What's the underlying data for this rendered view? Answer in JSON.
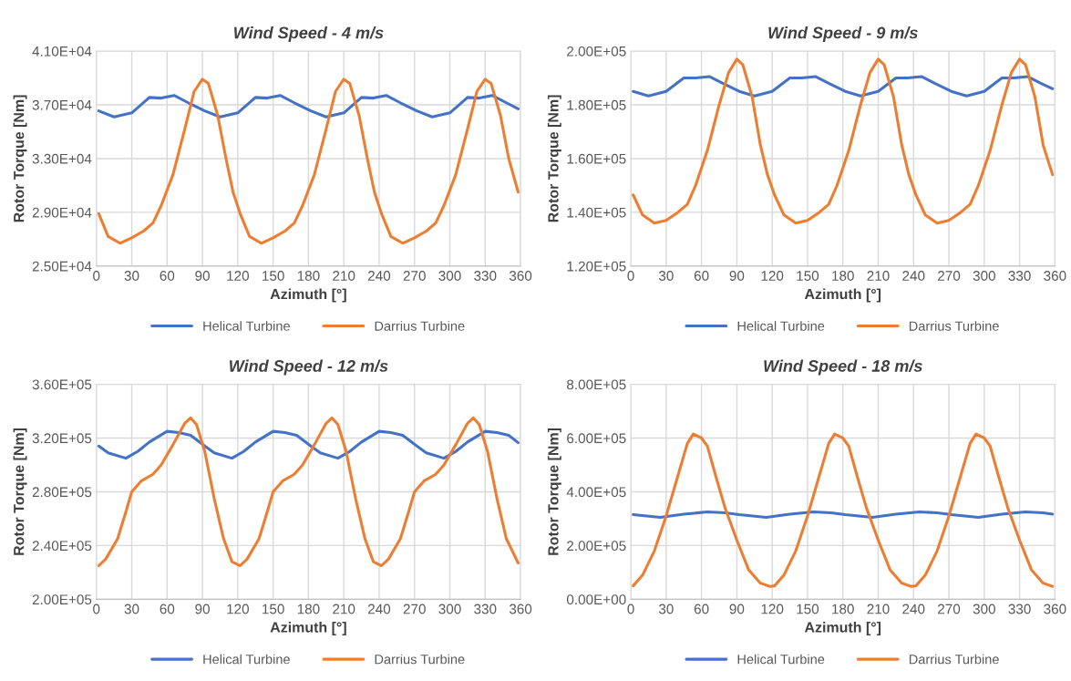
{
  "chart_data": [
    {
      "type": "line",
      "title": "Wind Speed - 4 m/s",
      "xlabel": "Azimuth [°]",
      "ylabel": "Rotor Torque [Nm]",
      "xlim": [
        0,
        360
      ],
      "xticks": [
        0,
        30,
        60,
        90,
        120,
        150,
        180,
        210,
        240,
        270,
        300,
        330,
        360
      ],
      "ylim": [
        25000,
        41000
      ],
      "yticks": [
        {
          "value": 25000,
          "label": "2.50E+04"
        },
        {
          "value": 29000,
          "label": "2.90E+04"
        },
        {
          "value": 33000,
          "label": "3.30E+04"
        },
        {
          "value": 37000,
          "label": "3.70E+04"
        },
        {
          "value": 41000,
          "label": "4.10E+04"
        }
      ],
      "grid": true,
      "legend": "bottom",
      "series": [
        {
          "name": "Helical Turbine",
          "color": "#4472c4",
          "x": [
            2,
            15,
            30,
            45,
            55,
            66,
            78,
            92,
            105,
            120,
            135,
            145,
            156,
            168,
            182,
            195,
            210,
            225,
            235,
            246,
            258,
            272,
            285,
            300,
            315,
            325,
            336,
            348,
            358
          ],
          "values": [
            36550,
            36100,
            36400,
            37550,
            37500,
            37700,
            37150,
            36550,
            36100,
            36400,
            37550,
            37500,
            37700,
            37150,
            36550,
            36100,
            36400,
            37550,
            37500,
            37700,
            37150,
            36550,
            36100,
            36400,
            37550,
            37500,
            37700,
            37150,
            36700
          ]
        },
        {
          "name": "Darrius Turbine",
          "color": "#ed7d31",
          "x": [
            2,
            10,
            20,
            30,
            40,
            48,
            55,
            65,
            75,
            83,
            90,
            95,
            103,
            110,
            116,
            122,
            130,
            140,
            150,
            160,
            168,
            175,
            185,
            195,
            203,
            210,
            215,
            223,
            230,
            236,
            242,
            250,
            260,
            270,
            280,
            288,
            295,
            305,
            315,
            323,
            330,
            335,
            343,
            350,
            358
          ],
          "values": [
            28900,
            27200,
            26700,
            27100,
            27600,
            28200,
            29500,
            31800,
            35200,
            38000,
            38900,
            38600,
            36200,
            33000,
            30500,
            28900,
            27200,
            26700,
            27100,
            27600,
            28200,
            29500,
            31800,
            35200,
            38000,
            38900,
            38600,
            36200,
            33000,
            30500,
            28900,
            27200,
            26700,
            27100,
            27600,
            28200,
            29500,
            31800,
            35200,
            38000,
            38900,
            38600,
            36200,
            33000,
            30500
          ]
        }
      ]
    },
    {
      "type": "line",
      "title": "Wind Speed - 9 m/s",
      "xlabel": "Azimuth [°]",
      "ylabel": "Rotor Torque [Nm]",
      "xlim": [
        0,
        360
      ],
      "xticks": [
        0,
        30,
        60,
        90,
        120,
        150,
        180,
        210,
        240,
        270,
        300,
        330,
        360
      ],
      "ylim": [
        120000,
        200000
      ],
      "yticks": [
        {
          "value": 120000,
          "label": "1.20E+05"
        },
        {
          "value": 140000,
          "label": "1.40E+05"
        },
        {
          "value": 160000,
          "label": "1.60E+05"
        },
        {
          "value": 180000,
          "label": "1.80E+05"
        },
        {
          "value": 200000,
          "label": "2.00E+05"
        }
      ],
      "grid": true,
      "legend": "bottom",
      "series": [
        {
          "name": "Helical Turbine",
          "color": "#4472c4",
          "x": [
            2,
            15,
            30,
            45,
            55,
            67,
            78,
            92,
            105,
            120,
            135,
            145,
            157,
            168,
            182,
            195,
            210,
            225,
            235,
            247,
            258,
            272,
            285,
            300,
            315,
            325,
            337,
            348,
            358
          ],
          "values": [
            185000,
            183300,
            185000,
            190000,
            190000,
            190500,
            188000,
            185000,
            183300,
            185000,
            190000,
            190000,
            190500,
            188000,
            185000,
            183300,
            185000,
            190000,
            190000,
            190500,
            188000,
            185000,
            183300,
            185000,
            190000,
            190000,
            190500,
            188000,
            186000
          ]
        },
        {
          "name": "Darrius Turbine",
          "color": "#ed7d31",
          "x": [
            2,
            10,
            20,
            30,
            40,
            48,
            55,
            65,
            75,
            83,
            90,
            95,
            103,
            110,
            116,
            122,
            130,
            140,
            150,
            160,
            168,
            175,
            185,
            195,
            203,
            210,
            215,
            223,
            230,
            236,
            242,
            250,
            260,
            270,
            280,
            288,
            295,
            305,
            315,
            323,
            330,
            335,
            343,
            350,
            358
          ],
          "values": [
            146500,
            139000,
            136000,
            137000,
            140000,
            143000,
            150000,
            163000,
            180000,
            192000,
            197000,
            195000,
            183000,
            165000,
            154000,
            146500,
            139000,
            136000,
            137000,
            140000,
            143000,
            150000,
            163000,
            180000,
            192000,
            197000,
            195000,
            183000,
            165000,
            154000,
            146500,
            139000,
            136000,
            137000,
            140000,
            143000,
            150000,
            163000,
            180000,
            192000,
            197000,
            195000,
            183000,
            165000,
            154000
          ]
        }
      ]
    },
    {
      "type": "line",
      "title": "Wind Speed - 12 m/s",
      "xlabel": "Azimuth [°]",
      "ylabel": "Rotor Torque [Nm]",
      "xlim": [
        0,
        360
      ],
      "xticks": [
        0,
        30,
        60,
        90,
        120,
        150,
        180,
        210,
        240,
        270,
        300,
        330,
        360
      ],
      "ylim": [
        200000,
        360000
      ],
      "yticks": [
        {
          "value": 200000,
          "label": "2.00E+05"
        },
        {
          "value": 240000,
          "label": "2.40E+05"
        },
        {
          "value": 280000,
          "label": "2.80E+05"
        },
        {
          "value": 320000,
          "label": "3.20E+05"
        },
        {
          "value": 360000,
          "label": "3.60E+05"
        }
      ],
      "grid": true,
      "legend": "bottom",
      "series": [
        {
          "name": "Helical Turbine",
          "color": "#4472c4",
          "x": [
            2,
            10,
            25,
            35,
            45,
            60,
            70,
            80,
            92,
            100,
            115,
            125,
            135,
            150,
            160,
            170,
            182,
            190,
            205,
            215,
            225,
            240,
            250,
            260,
            272,
            280,
            295,
            305,
            315,
            330,
            340,
            350,
            358
          ],
          "values": [
            314000,
            309000,
            305000,
            310000,
            317000,
            325000,
            324000,
            322000,
            314000,
            309000,
            305000,
            310000,
            317000,
            325000,
            324000,
            322000,
            314000,
            309000,
            305000,
            310000,
            317000,
            325000,
            324000,
            322000,
            314000,
            309000,
            305000,
            310000,
            317000,
            325000,
            324000,
            322000,
            316500
          ]
        },
        {
          "name": "Darrius Turbine",
          "color": "#ed7d31",
          "x": [
            2,
            8,
            18,
            25,
            30,
            38,
            48,
            55,
            65,
            75,
            80,
            85,
            92,
            100,
            108,
            115,
            122,
            128,
            138,
            145,
            150,
            158,
            168,
            175,
            185,
            195,
            200,
            205,
            212,
            220,
            228,
            235,
            242,
            248,
            258,
            265,
            270,
            278,
            288,
            295,
            305,
            315,
            320,
            325,
            332,
            340,
            348,
            358
          ],
          "values": [
            225000,
            230000,
            245000,
            265000,
            280000,
            288000,
            293000,
            300000,
            315000,
            331000,
            335000,
            330000,
            310000,
            275000,
            245000,
            228000,
            225000,
            230000,
            245000,
            265000,
            280000,
            288000,
            293000,
            300000,
            315000,
            331000,
            335000,
            330000,
            310000,
            275000,
            245000,
            228000,
            225000,
            230000,
            245000,
            265000,
            280000,
            288000,
            293000,
            300000,
            315000,
            331000,
            335000,
            330000,
            310000,
            275000,
            245000,
            227000
          ]
        }
      ]
    },
    {
      "type": "line",
      "title": "Wind Speed - 18 m/s",
      "xlabel": "Azimuth [°]",
      "ylabel": "Rotor Torque [Nm]",
      "xlim": [
        0,
        360
      ],
      "xticks": [
        0,
        30,
        60,
        90,
        120,
        150,
        180,
        210,
        240,
        270,
        300,
        330,
        360
      ],
      "ylim": [
        0,
        800000
      ],
      "yticks": [
        {
          "value": 0,
          "label": "0.00E+00"
        },
        {
          "value": 200000,
          "label": "2.00E+05"
        },
        {
          "value": 400000,
          "label": "4.00E+05"
        },
        {
          "value": 600000,
          "label": "6.00E+05"
        },
        {
          "value": 800000,
          "label": "8.00E+05"
        }
      ],
      "grid": true,
      "legend": "bottom",
      "series": [
        {
          "name": "Helical Turbine",
          "color": "#4472c4",
          "x": [
            2,
            25,
            45,
            65,
            80,
            92,
            115,
            135,
            155,
            170,
            182,
            205,
            225,
            245,
            260,
            272,
            295,
            315,
            335,
            350,
            358
          ],
          "values": [
            315000,
            305000,
            317000,
            325000,
            322000,
            315000,
            305000,
            317000,
            325000,
            322000,
            315000,
            305000,
            317000,
            325000,
            322000,
            315000,
            305000,
            317000,
            325000,
            322000,
            317000
          ]
        },
        {
          "name": "Darrius Turbine",
          "color": "#ed7d31",
          "x": [
            2,
            10,
            20,
            30,
            40,
            48,
            53,
            60,
            65,
            72,
            80,
            90,
            100,
            110,
            118,
            122,
            130,
            140,
            150,
            160,
            168,
            173,
            180,
            185,
            192,
            200,
            210,
            220,
            230,
            238,
            242,
            250,
            260,
            270,
            280,
            288,
            293,
            300,
            305,
            312,
            320,
            330,
            340,
            350,
            358
          ],
          "values": [
            50000,
            90000,
            180000,
            310000,
            460000,
            580000,
            615000,
            600000,
            570000,
            460000,
            340000,
            220000,
            110000,
            60000,
            48000,
            50000,
            90000,
            180000,
            310000,
            460000,
            580000,
            615000,
            600000,
            570000,
            460000,
            340000,
            220000,
            110000,
            60000,
            48000,
            50000,
            90000,
            180000,
            310000,
            460000,
            580000,
            615000,
            600000,
            570000,
            460000,
            340000,
            220000,
            110000,
            60000,
            48000
          ]
        }
      ]
    }
  ]
}
